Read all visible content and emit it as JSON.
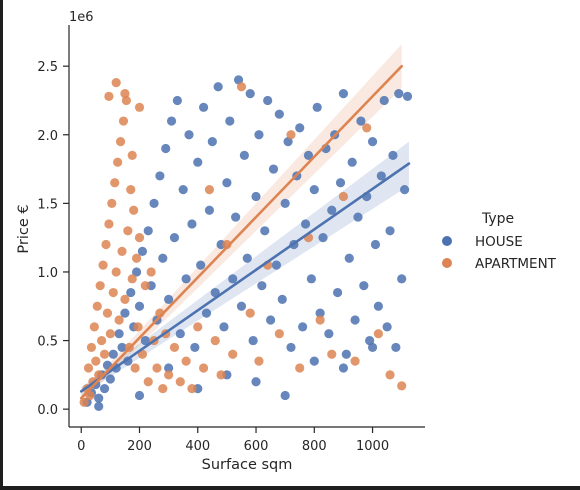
{
  "chart_data": {
    "type": "scatter",
    "x_label": "Surface sqm",
    "y_label": "Price €",
    "y_offset_text": "1e6",
    "x_ticks": [
      0,
      200,
      400,
      600,
      800,
      1000
    ],
    "x_tick_labels": [
      "0",
      "200",
      "400",
      "600",
      "800",
      "1000"
    ],
    "y_ticks": [
      0.0,
      0.5,
      1.0,
      1.5,
      2.0,
      2.5
    ],
    "y_tick_labels": [
      "0.0",
      "0.5",
      "1.0",
      "1.5",
      "2.0",
      "2.5"
    ],
    "x_range": [
      -42,
      1180
    ],
    "y_range": [
      -0.13,
      2.8
    ],
    "y_unit_multiplier": 1000000,
    "grid": false,
    "legend": {
      "title": "Type",
      "placement": "right",
      "entries": [
        "HOUSE",
        "APARTMENT"
      ]
    },
    "series": [
      {
        "name": "HOUSE",
        "color": "#4c72b0",
        "points": [
          [
            20,
            0.05
          ],
          [
            35,
            0.12
          ],
          [
            50,
            0.18
          ],
          [
            60,
            0.08
          ],
          [
            70,
            0.25
          ],
          [
            80,
            0.15
          ],
          [
            90,
            0.32
          ],
          [
            100,
            0.22
          ],
          [
            110,
            0.4
          ],
          [
            120,
            0.3
          ],
          [
            130,
            0.55
          ],
          [
            140,
            0.45
          ],
          [
            150,
            0.7
          ],
          [
            160,
            0.35
          ],
          [
            170,
            0.85
          ],
          [
            180,
            0.6
          ],
          [
            190,
            1.0
          ],
          [
            200,
            0.75
          ],
          [
            210,
            1.15
          ],
          [
            220,
            0.5
          ],
          [
            230,
            1.3
          ],
          [
            240,
            0.9
          ],
          [
            250,
            1.5
          ],
          [
            260,
            0.65
          ],
          [
            270,
            1.7
          ],
          [
            280,
            1.1
          ],
          [
            290,
            1.9
          ],
          [
            300,
            0.8
          ],
          [
            310,
            2.1
          ],
          [
            320,
            1.25
          ],
          [
            330,
            2.25
          ],
          [
            340,
            0.55
          ],
          [
            350,
            1.6
          ],
          [
            360,
            0.95
          ],
          [
            370,
            2.0
          ],
          [
            380,
            1.35
          ],
          [
            390,
            0.45
          ],
          [
            400,
            1.8
          ],
          [
            410,
            1.05
          ],
          [
            420,
            2.2
          ],
          [
            430,
            0.7
          ],
          [
            440,
            1.45
          ],
          [
            450,
            1.95
          ],
          [
            460,
            0.85
          ],
          [
            470,
            2.35
          ],
          [
            480,
            1.2
          ],
          [
            490,
            0.6
          ],
          [
            500,
            1.65
          ],
          [
            510,
            2.1
          ],
          [
            520,
            0.95
          ],
          [
            530,
            1.4
          ],
          [
            540,
            2.4
          ],
          [
            550,
            0.75
          ],
          [
            560,
            1.85
          ],
          [
            570,
            1.1
          ],
          [
            580,
            2.3
          ],
          [
            590,
            0.5
          ],
          [
            600,
            1.55
          ],
          [
            610,
            2.0
          ],
          [
            620,
            0.9
          ],
          [
            630,
            1.3
          ],
          [
            640,
            2.25
          ],
          [
            650,
            0.65
          ],
          [
            660,
            1.75
          ],
          [
            670,
            1.05
          ],
          [
            680,
            2.15
          ],
          [
            690,
            0.8
          ],
          [
            700,
            1.5
          ],
          [
            710,
            1.95
          ],
          [
            720,
            0.45
          ],
          [
            730,
            1.2
          ],
          [
            740,
            1.7
          ],
          [
            750,
            2.05
          ],
          [
            760,
            0.6
          ],
          [
            770,
            1.35
          ],
          [
            780,
            1.85
          ],
          [
            790,
            0.95
          ],
          [
            800,
            1.6
          ],
          [
            810,
            2.2
          ],
          [
            820,
            0.7
          ],
          [
            830,
            1.25
          ],
          [
            840,
            1.9
          ],
          [
            850,
            0.55
          ],
          [
            860,
            1.45
          ],
          [
            870,
            2.0
          ],
          [
            880,
            0.85
          ],
          [
            890,
            1.65
          ],
          [
            900,
            2.3
          ],
          [
            910,
            0.4
          ],
          [
            920,
            1.1
          ],
          [
            930,
            1.8
          ],
          [
            940,
            0.65
          ],
          [
            950,
            1.4
          ],
          [
            960,
            2.1
          ],
          [
            970,
            0.9
          ],
          [
            980,
            1.55
          ],
          [
            990,
            0.5
          ],
          [
            1000,
            1.95
          ],
          [
            1010,
            1.2
          ],
          [
            1020,
            0.75
          ],
          [
            1030,
            1.7
          ],
          [
            1040,
            2.25
          ],
          [
            1050,
            0.6
          ],
          [
            1060,
            1.3
          ],
          [
            1070,
            1.85
          ],
          [
            1080,
            0.45
          ],
          [
            1090,
            2.3
          ],
          [
            1100,
            0.95
          ],
          [
            1110,
            1.6
          ],
          [
            1120,
            2.28
          ],
          [
            60,
            0.02
          ],
          [
            200,
            0.1
          ],
          [
            300,
            0.3
          ],
          [
            400,
            0.15
          ],
          [
            500,
            0.25
          ],
          [
            600,
            0.2
          ],
          [
            700,
            0.1
          ],
          [
            800,
            0.35
          ],
          [
            900,
            0.3
          ],
          [
            1000,
            0.45
          ]
        ],
        "regression": {
          "x_start": 0,
          "x_end": 1125,
          "y_start": 0.13,
          "y_end": 1.79
        }
      },
      {
        "name": "APARTMENT",
        "color": "#dd8452",
        "points": [
          [
            10,
            0.05
          ],
          [
            20,
            0.15
          ],
          [
            25,
            0.3
          ],
          [
            30,
            0.1
          ],
          [
            35,
            0.45
          ],
          [
            40,
            0.2
          ],
          [
            45,
            0.6
          ],
          [
            50,
            0.35
          ],
          [
            55,
            0.75
          ],
          [
            60,
            0.25
          ],
          [
            65,
            0.9
          ],
          [
            70,
            0.5
          ],
          [
            75,
            1.05
          ],
          [
            80,
            0.4
          ],
          [
            85,
            1.2
          ],
          [
            90,
            0.7
          ],
          [
            95,
            1.35
          ],
          [
            100,
            0.55
          ],
          [
            105,
            1.5
          ],
          [
            110,
            0.85
          ],
          [
            115,
            1.65
          ],
          [
            120,
            1.0
          ],
          [
            125,
            1.8
          ],
          [
            130,
            0.65
          ],
          [
            135,
            1.95
          ],
          [
            140,
            1.15
          ],
          [
            145,
            2.1
          ],
          [
            150,
            0.8
          ],
          [
            155,
            2.25
          ],
          [
            160,
            1.3
          ],
          [
            165,
            0.45
          ],
          [
            170,
            1.6
          ],
          [
            175,
            0.95
          ],
          [
            180,
            1.45
          ],
          [
            185,
            0.3
          ],
          [
            190,
            1.1
          ],
          [
            195,
            0.6
          ],
          [
            200,
            1.25
          ],
          [
            210,
            0.4
          ],
          [
            220,
            0.9
          ],
          [
            230,
            0.2
          ],
          [
            240,
            1.0
          ],
          [
            250,
            0.5
          ],
          [
            260,
            0.3
          ],
          [
            270,
            0.7
          ],
          [
            280,
            0.15
          ],
          [
            290,
            0.55
          ],
          [
            300,
            0.25
          ],
          [
            320,
            0.45
          ],
          [
            340,
            0.2
          ],
          [
            360,
            0.35
          ],
          [
            380,
            0.15
          ],
          [
            400,
            0.6
          ],
          [
            420,
            0.3
          ],
          [
            440,
            1.6
          ],
          [
            460,
            0.5
          ],
          [
            480,
            0.25
          ],
          [
            500,
            1.2
          ],
          [
            520,
            0.4
          ],
          [
            550,
            2.35
          ],
          [
            580,
            0.7
          ],
          [
            610,
            0.35
          ],
          [
            640,
            1.05
          ],
          [
            680,
            0.55
          ],
          [
            720,
            2.0
          ],
          [
            750,
            0.3
          ],
          [
            780,
            1.25
          ],
          [
            820,
            0.65
          ],
          [
            860,
            0.4
          ],
          [
            900,
            1.55
          ],
          [
            940,
            0.35
          ],
          [
            980,
            2.05
          ],
          [
            1020,
            0.55
          ],
          [
            1060,
            0.25
          ],
          [
            1100,
            0.17
          ],
          [
            120,
            2.38
          ],
          [
            150,
            2.3
          ],
          [
            95,
            2.28
          ],
          [
            200,
            2.2
          ],
          [
            175,
            1.85
          ]
        ],
        "regression": {
          "x_start": 0,
          "x_end": 1100,
          "y_start": 0.08,
          "y_end": 2.5
        }
      }
    ]
  }
}
